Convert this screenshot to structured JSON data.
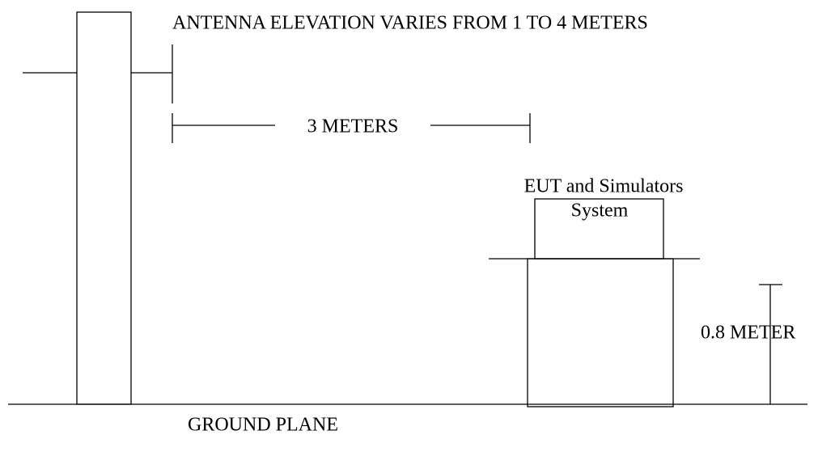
{
  "labels": {
    "antenna": "ANTENNA ELEVATION VARIES FROM 1 TO 4 METERS",
    "distance": "3 METERS",
    "eut": "EUT and Simulators",
    "system": "System",
    "height": "0.8 METER",
    "ground": "GROUND PLANE"
  }
}
